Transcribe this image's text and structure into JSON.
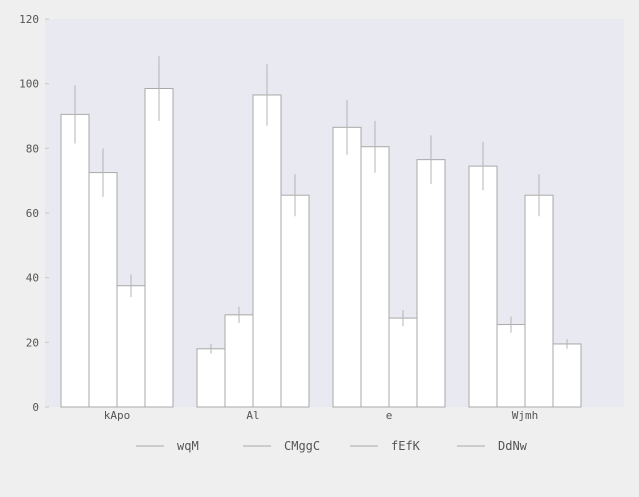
{
  "chart_data": {
    "type": "bar",
    "categories": [
      "kApo",
      "Al",
      "e",
      "Wjmh"
    ],
    "series": [
      {
        "name": "wqM",
        "values": [
          90.5,
          18.0,
          86.5,
          74.5
        ],
        "errors": [
          9.0,
          1.5,
          8.5,
          7.5
        ]
      },
      {
        "name": "CMggC",
        "values": [
          72.5,
          28.5,
          80.5,
          25.5
        ],
        "errors": [
          7.5,
          2.5,
          8.0,
          2.5
        ]
      },
      {
        "name": "fEfK",
        "values": [
          37.5,
          96.5,
          27.5,
          65.5
        ],
        "errors": [
          3.5,
          9.5,
          2.5,
          6.5
        ]
      },
      {
        "name": "DdNw",
        "values": [
          98.5,
          65.5,
          76.5,
          19.5
        ],
        "errors": [
          10.0,
          6.5,
          7.5,
          1.5
        ]
      }
    ],
    "yticks": [
      "0",
      "20",
      "40",
      "60",
      "80",
      "100",
      "120"
    ],
    "ylim": [
      0,
      120
    ],
    "grid": false,
    "legend_position": "bottom",
    "colors": {
      "plot_bg": "#e9e9f1",
      "page_bg": "#efefef",
      "bar_fill": "#ffffff",
      "bar_edge": "#a9a9a9",
      "error_bar": "#b5b5b5"
    }
  }
}
